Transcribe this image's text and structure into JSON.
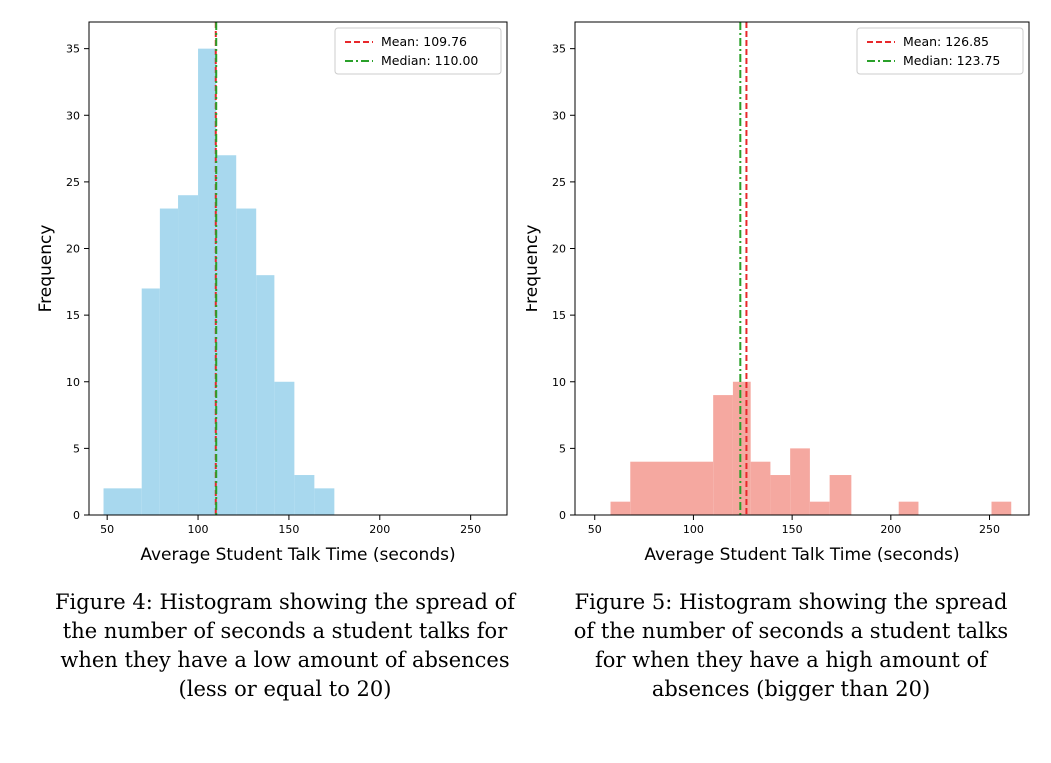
{
  "chart_data": [
    {
      "type": "bar",
      "xlabel": "Average Student Talk Time (seconds)",
      "ylabel": "Frequency",
      "xlim": [
        40,
        270
      ],
      "ylim": [
        0,
        37
      ],
      "xticks": [
        50,
        100,
        150,
        200,
        250
      ],
      "yticks": [
        0,
        5,
        10,
        15,
        20,
        25,
        30,
        35
      ],
      "color": "#a8d8ee",
      "bins": [
        {
          "x0": 48,
          "x1": 69,
          "count": 2
        },
        {
          "x0": 69,
          "x1": 79,
          "count": 17
        },
        {
          "x0": 79,
          "x1": 89,
          "count": 23
        },
        {
          "x0": 89,
          "x1": 100,
          "count": 24
        },
        {
          "x0": 100,
          "x1": 110,
          "count": 35
        },
        {
          "x0": 110,
          "x1": 121,
          "count": 27
        },
        {
          "x0": 121,
          "x1": 132,
          "count": 23
        },
        {
          "x0": 132,
          "x1": 142,
          "count": 18
        },
        {
          "x0": 142,
          "x1": 153,
          "count": 10
        },
        {
          "x0": 153,
          "x1": 164,
          "count": 3
        },
        {
          "x0": 164,
          "x1": 175,
          "count": 2
        }
      ],
      "lines": [
        {
          "value": 109.76,
          "label": "Mean: 109.76",
          "color": "#e8282b",
          "style": "dashed"
        },
        {
          "value": 110.0,
          "label": "Median: 110.00",
          "color": "#2aa02a",
          "style": "dashdot"
        }
      ],
      "legend": "top-right",
      "caption": [
        "Figure 4: Histogram  showing the spread of",
        "the number of seconds a student talks for",
        "when they have a low amount of absences",
        "(less or equal to 20)"
      ]
    },
    {
      "type": "bar",
      "xlabel": "Average Student Talk Time (seconds)",
      "ylabel": "Frequency",
      "xlim": [
        40,
        270
      ],
      "ylim": [
        0,
        37
      ],
      "xticks": [
        50,
        100,
        150,
        200,
        250
      ],
      "yticks": [
        0,
        5,
        10,
        15,
        20,
        25,
        30,
        35
      ],
      "color": "#f5a8a0",
      "bins": [
        {
          "x0": 58,
          "x1": 68,
          "count": 1
        },
        {
          "x0": 68,
          "x1": 110,
          "count": 4
        },
        {
          "x0": 110,
          "x1": 120,
          "count": 9
        },
        {
          "x0": 120,
          "x1": 129,
          "count": 10
        },
        {
          "x0": 129,
          "x1": 139,
          "count": 4
        },
        {
          "x0": 139,
          "x1": 149,
          "count": 3
        },
        {
          "x0": 149,
          "x1": 159,
          "count": 5
        },
        {
          "x0": 159,
          "x1": 169,
          "count": 1
        },
        {
          "x0": 169,
          "x1": 180,
          "count": 3
        },
        {
          "x0": 204,
          "x1": 214,
          "count": 1
        },
        {
          "x0": 251,
          "x1": 261,
          "count": 1
        }
      ],
      "lines": [
        {
          "value": 126.85,
          "label": "Mean: 126.85",
          "color": "#e8282b",
          "style": "dashed"
        },
        {
          "value": 123.75,
          "label": "Median: 123.75",
          "color": "#2aa02a",
          "style": "dashdot"
        }
      ],
      "legend": "top-right",
      "caption": [
        "Figure 5: Histogram showing the spread",
        "of the number of seconds a student talks",
        "for when they have a high amount of",
        "absences (bigger than 20)"
      ]
    }
  ]
}
